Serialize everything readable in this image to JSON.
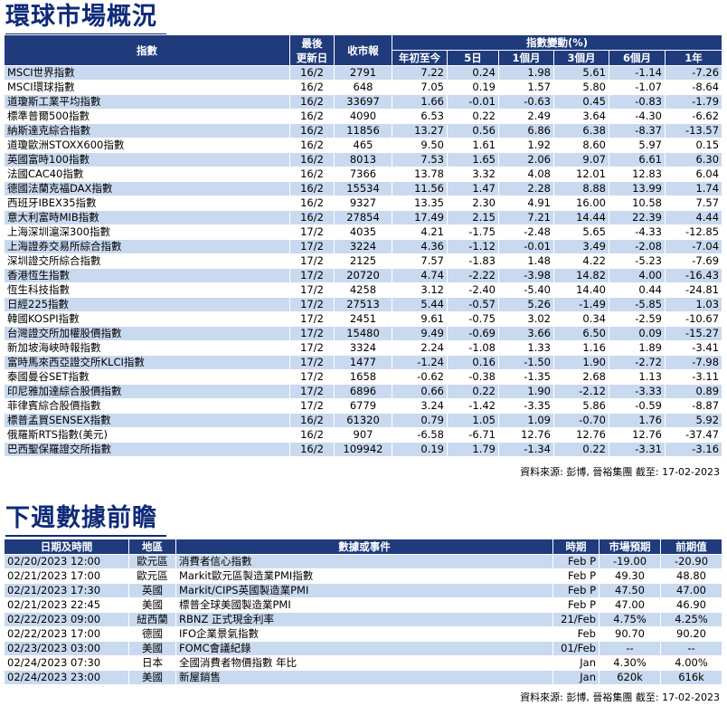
{
  "market": {
    "title": "環球市場概況",
    "headers": {
      "index": "指數",
      "update": [
        "最後",
        "更新日"
      ],
      "close": "收市報",
      "change_group": "指數變動(%)",
      "periods": [
        "年初至今",
        "5日",
        "1個月",
        "3個月",
        "6個月",
        "1年"
      ]
    },
    "rows": [
      [
        "MSCI世界指數",
        "16/2",
        "2791",
        "7.22",
        "0.24",
        "1.98",
        "5.61",
        "-1.14",
        "-7.26"
      ],
      [
        "MSCI環球指數",
        "16/2",
        "648",
        "7.05",
        "0.19",
        "1.57",
        "5.80",
        "-1.07",
        "-8.64"
      ],
      [
        "道瓊斯工業平均指數",
        "16/2",
        "33697",
        "1.66",
        "-0.01",
        "-0.63",
        "0.45",
        "-0.83",
        "-1.79"
      ],
      [
        "標準普爾500指數",
        "16/2",
        "4090",
        "6.53",
        "0.22",
        "2.49",
        "3.64",
        "-4.30",
        "-6.62"
      ],
      [
        "納斯達克綜合指數",
        "16/2",
        "11856",
        "13.27",
        "0.56",
        "6.86",
        "6.38",
        "-8.37",
        "-13.57"
      ],
      [
        "道瓊歐洲STOXX600指數",
        "16/2",
        "465",
        "9.50",
        "1.61",
        "1.92",
        "8.60",
        "5.97",
        "0.15"
      ],
      [
        "英國富時100指數",
        "16/2",
        "8013",
        "7.53",
        "1.65",
        "2.06",
        "9.07",
        "6.61",
        "6.30"
      ],
      [
        "法國CAC40指數",
        "16/2",
        "7366",
        "13.78",
        "3.32",
        "4.08",
        "12.01",
        "12.83",
        "6.04"
      ],
      [
        "德國法蘭克福DAX指數",
        "16/2",
        "15534",
        "11.56",
        "1.47",
        "2.28",
        "8.88",
        "13.99",
        "1.74"
      ],
      [
        "西班牙IBEX35指數",
        "16/2",
        "9327",
        "13.35",
        "2.30",
        "4.91",
        "16.00",
        "10.58",
        "7.57"
      ],
      [
        "意大利富時MIB指數",
        "16/2",
        "27854",
        "17.49",
        "2.15",
        "7.21",
        "14.44",
        "22.39",
        "4.44"
      ],
      [
        "上海深圳滬深300指數",
        "17/2",
        "4035",
        "4.21",
        "-1.75",
        "-2.48",
        "5.65",
        "-4.33",
        "-12.85"
      ],
      [
        "上海證券交易所綜合指數",
        "17/2",
        "3224",
        "4.36",
        "-1.12",
        "-0.01",
        "3.49",
        "-2.08",
        "-7.04"
      ],
      [
        "深圳證交所綜合指數",
        "17/2",
        "2125",
        "7.57",
        "-1.83",
        "1.48",
        "4.22",
        "-5.23",
        "-7.69"
      ],
      [
        "香港恆生指數",
        "17/2",
        "20720",
        "4.74",
        "-2.22",
        "-3.98",
        "14.82",
        "4.00",
        "-16.43"
      ],
      [
        "恆生科技指數",
        "17/2",
        "4258",
        "3.12",
        "-2.40",
        "-5.40",
        "14.40",
        "0.44",
        "-24.81"
      ],
      [
        "日經225指數",
        "17/2",
        "27513",
        "5.44",
        "-0.57",
        "5.26",
        "-1.49",
        "-5.85",
        "1.03"
      ],
      [
        "韓國KOSPI指數",
        "17/2",
        "2451",
        "9.61",
        "-0.75",
        "3.02",
        "0.34",
        "-2.59",
        "-10.67"
      ],
      [
        "台灣證交所加權股價指數",
        "17/2",
        "15480",
        "9.49",
        "-0.69",
        "3.66",
        "6.50",
        "0.09",
        "-15.27"
      ],
      [
        "新加坡海峽時報指數",
        "17/2",
        "3324",
        "2.24",
        "-1.08",
        "1.33",
        "1.16",
        "1.89",
        "-3.41"
      ],
      [
        "富時馬來西亞證交所KLCI指數",
        "17/2",
        "1477",
        "-1.24",
        "0.16",
        "-1.50",
        "1.90",
        "-2.72",
        "-7.98"
      ],
      [
        "泰國曼谷SET指數",
        "17/2",
        "1658",
        "-0.62",
        "-0.38",
        "-1.35",
        "2.68",
        "1.13",
        "-3.11"
      ],
      [
        "印尼雅加達綜合股價指數",
        "17/2",
        "6896",
        "0.66",
        "0.22",
        "1.90",
        "-2.12",
        "-3.33",
        "0.89"
      ],
      [
        "菲律賓綜合股價指數",
        "17/2",
        "6779",
        "3.24",
        "-1.42",
        "-3.35",
        "5.86",
        "-0.59",
        "-8.87"
      ],
      [
        "標普孟買SENSEX指數",
        "16/2",
        "61320",
        "0.79",
        "1.05",
        "1.09",
        "-0.70",
        "1.76",
        "5.92"
      ],
      [
        "俄羅斯RTS指數(美元)",
        "16/2",
        "907",
        "-6.58",
        "-6.71",
        "12.76",
        "12.76",
        "12.76",
        "-37.47"
      ],
      [
        "巴西聖保羅證交所指數",
        "16/2",
        "109942",
        "0.19",
        "1.79",
        "-1.34",
        "0.22",
        "-3.31",
        "-3.16"
      ]
    ],
    "source": "資料來源: 彭博, 晉裕集團 截至: 17-02-2023"
  },
  "week": {
    "title": "下週數據前瞻",
    "headers": [
      "日期及時間",
      "地區",
      "數據或事件",
      "時期",
      "市場預期",
      "前期值"
    ],
    "rows": [
      [
        "02/20/2023 12:00",
        "歐元區",
        "消費者信心指數",
        "Feb P",
        "-19.00",
        "-20.90"
      ],
      [
        "02/21/2023 17:00",
        "歐元區",
        "Markit歐元區製造業PMI指數",
        "Feb P",
        "49.30",
        "48.80"
      ],
      [
        "02/21/2023 17:30",
        "英國",
        "Markit/CIPS英國製造業PMI",
        "Feb P",
        "47.50",
        "47.00"
      ],
      [
        "02/21/2023 22:45",
        "美國",
        "標普全球美國製造業PMI",
        "Feb P",
        "47.00",
        "46.90"
      ],
      [
        "02/22/2023 09:00",
        "紐西蘭",
        "RBNZ 正式現金利率",
        "21/Feb",
        "4.75%",
        "4.25%"
      ],
      [
        "02/22/2023 17:00",
        "德國",
        "IFO企業景氣指數",
        "Feb",
        "90.70",
        "90.20"
      ],
      [
        "02/23/2023 03:00",
        "美國",
        "FOMC會議紀錄",
        "01/Feb",
        "--",
        "--"
      ],
      [
        "02/24/2023 07:30",
        "日本",
        "全國消費者物價指數 年比",
        "Jan",
        "4.30%",
        "4.00%"
      ],
      [
        "02/24/2023 23:00",
        "美國",
        "新屋銷售",
        "Jan",
        "620k",
        "616k"
      ]
    ],
    "source": "資料來源: 彭博, 晉裕集團 截至: 17-02-2023"
  }
}
